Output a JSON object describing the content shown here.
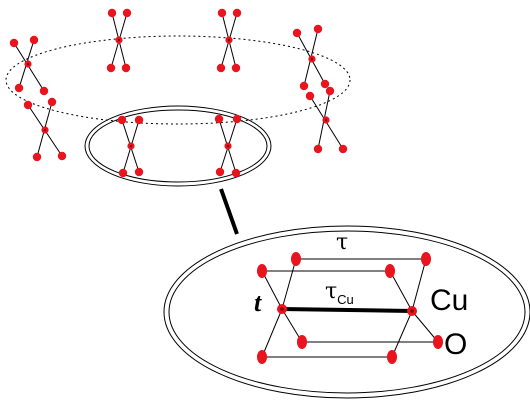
{
  "labels": {
    "tau": "τ",
    "tau_cu_main": "τ",
    "tau_cu_sub": "Cu",
    "t": "t",
    "cu": "Cu",
    "o": "O"
  },
  "colors": {
    "atom": "#e8141e",
    "line": "#000000",
    "copper_center": "#8b0000"
  }
}
